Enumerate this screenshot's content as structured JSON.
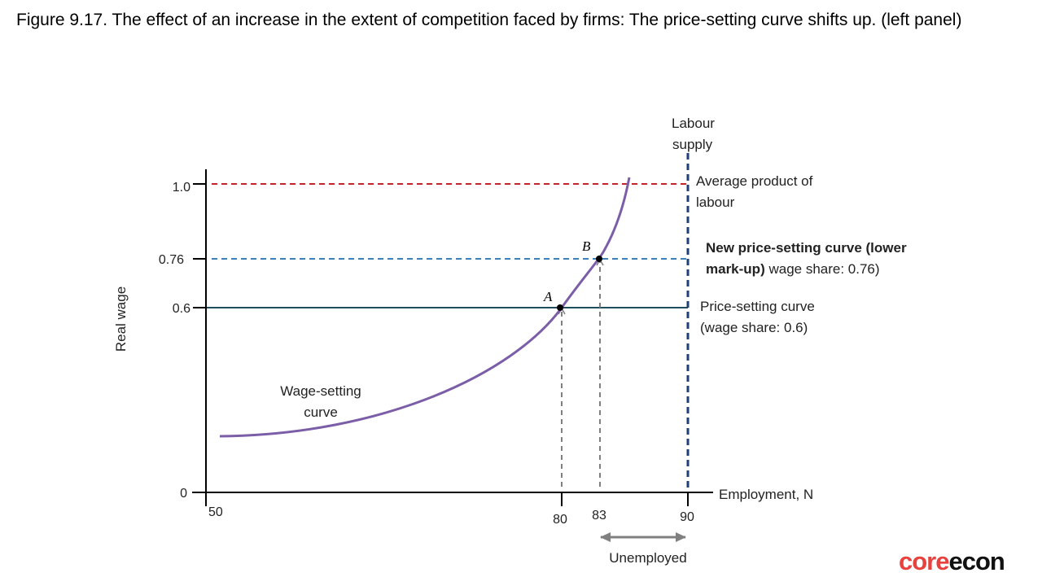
{
  "caption": "Figure 9.17. The effect of an increase in the extent of competition faced by firms: The price-setting curve shifts up. (left panel)",
  "logo": {
    "core": "core",
    "econ": "econ"
  },
  "colors": {
    "axis": "#000000",
    "apl": "#c0272d",
    "new_ps": "#3f7fb5",
    "ps": "#1f4e5f",
    "ws": "#7b5ea7",
    "labour_supply": "#1f3f7a",
    "guides": "#808080"
  },
  "chart_data": {
    "type": "line",
    "xlabel": "Employment, N",
    "ylabel": "Real wage",
    "xlim": [
      50,
      90
    ],
    "ylim": [
      0,
      1.0
    ],
    "x_ticks": [
      "50",
      "80",
      "83",
      "90"
    ],
    "y_ticks": [
      "0",
      "0.6",
      "0.76",
      "1.0"
    ],
    "series": [
      {
        "name": "Average product of labour",
        "style": "dashed",
        "color": "#c0272d",
        "y": 1.0
      },
      {
        "name": "New price-setting curve (lower mark-up) wage share: 0.76",
        "style": "dashed",
        "color": "#3f7fb5",
        "y": 0.76
      },
      {
        "name": "Price-setting curve (wage share: 0.6)",
        "style": "solid",
        "color": "#1f4e5f",
        "y": 0.6
      },
      {
        "name": "Labour supply",
        "style": "dashed",
        "color": "#1f3f7a",
        "x": 90
      },
      {
        "name": "Wage-setting curve",
        "style": "solid",
        "color": "#7b5ea7",
        "points": [
          [
            51,
            0.18
          ],
          [
            58,
            0.21
          ],
          [
            65,
            0.27
          ],
          [
            70,
            0.33
          ],
          [
            74,
            0.41
          ],
          [
            77,
            0.5
          ],
          [
            80,
            0.6
          ],
          [
            81.5,
            0.67
          ],
          [
            83,
            0.76
          ],
          [
            84.5,
            0.88
          ],
          [
            85.5,
            1.02
          ]
        ]
      }
    ],
    "points": [
      {
        "label": "A",
        "x": 80,
        "y": 0.6
      },
      {
        "label": "B",
        "x": 83,
        "y": 0.76
      }
    ],
    "annotations": {
      "labour_supply_1": "Labour",
      "labour_supply_2": "supply",
      "apl_1": "Average product of",
      "apl_2": "labour",
      "new_ps_1": "New price-setting curve (lower",
      "new_ps_2a": "mark-up)",
      "new_ps_2b": " wage share: 0.76)",
      "ps_1": "Price-setting curve",
      "ps_2": "(wage share: 0.6)",
      "ws_1": "Wage-setting",
      "ws_2": "curve",
      "unemployed": "Unemployed"
    }
  }
}
